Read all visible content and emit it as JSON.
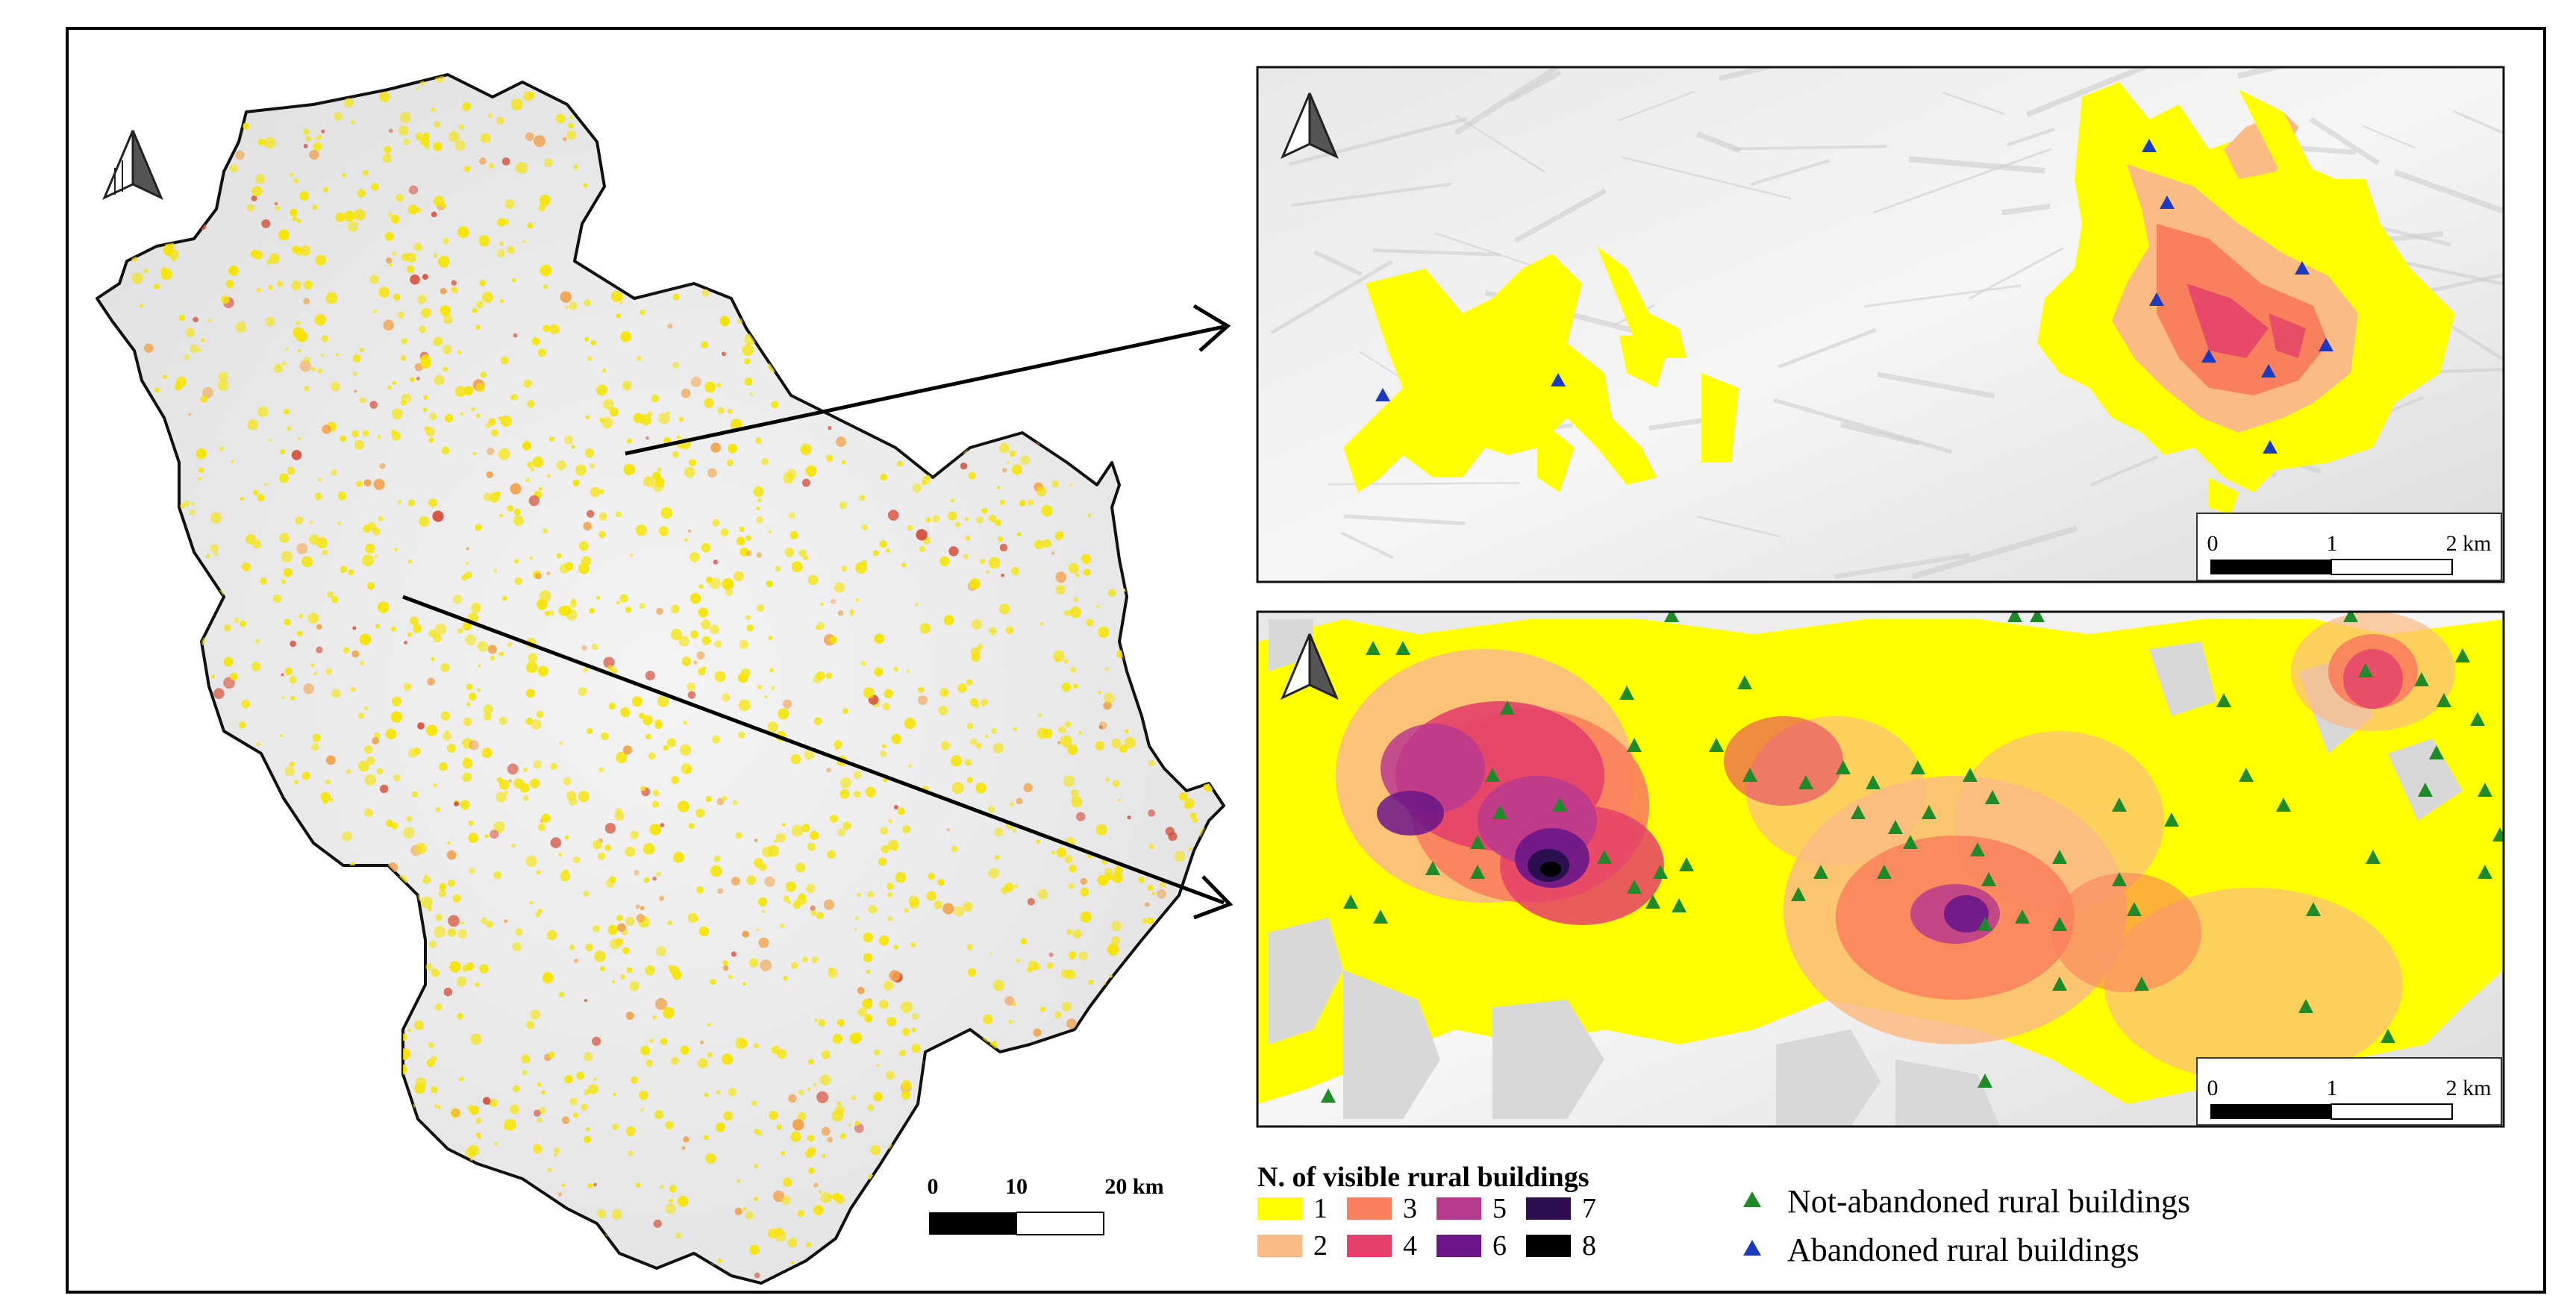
{
  "left_map": {
    "scale_bar": {
      "labels": [
        "0",
        "10",
        "20 km"
      ]
    }
  },
  "inset_top": {
    "scale_bar": {
      "labels": [
        "0",
        "1",
        "2 km"
      ]
    }
  },
  "inset_bottom": {
    "scale_bar": {
      "labels": [
        "0",
        "1",
        "2 km"
      ]
    }
  },
  "legend": {
    "title": "N. of visible rural buildings",
    "classes": [
      {
        "label": "1",
        "color": "#ffff00"
      },
      {
        "label": "2",
        "color": "#fcbb84"
      },
      {
        "label": "3",
        "color": "#f9805c"
      },
      {
        "label": "4",
        "color": "#e4406a"
      },
      {
        "label": "5",
        "color": "#b83a8e"
      },
      {
        "label": "6",
        "color": "#6a1689"
      },
      {
        "label": "7",
        "color": "#2b0f4f"
      },
      {
        "label": "8",
        "color": "#000000"
      }
    ],
    "markers": [
      {
        "label": "Not-abandoned rural buildings",
        "color": "#1e8a2a",
        "symbol": "triangle"
      },
      {
        "label": "Abandoned rural buildings",
        "color": "#1a3bbf",
        "symbol": "triangle"
      }
    ]
  }
}
